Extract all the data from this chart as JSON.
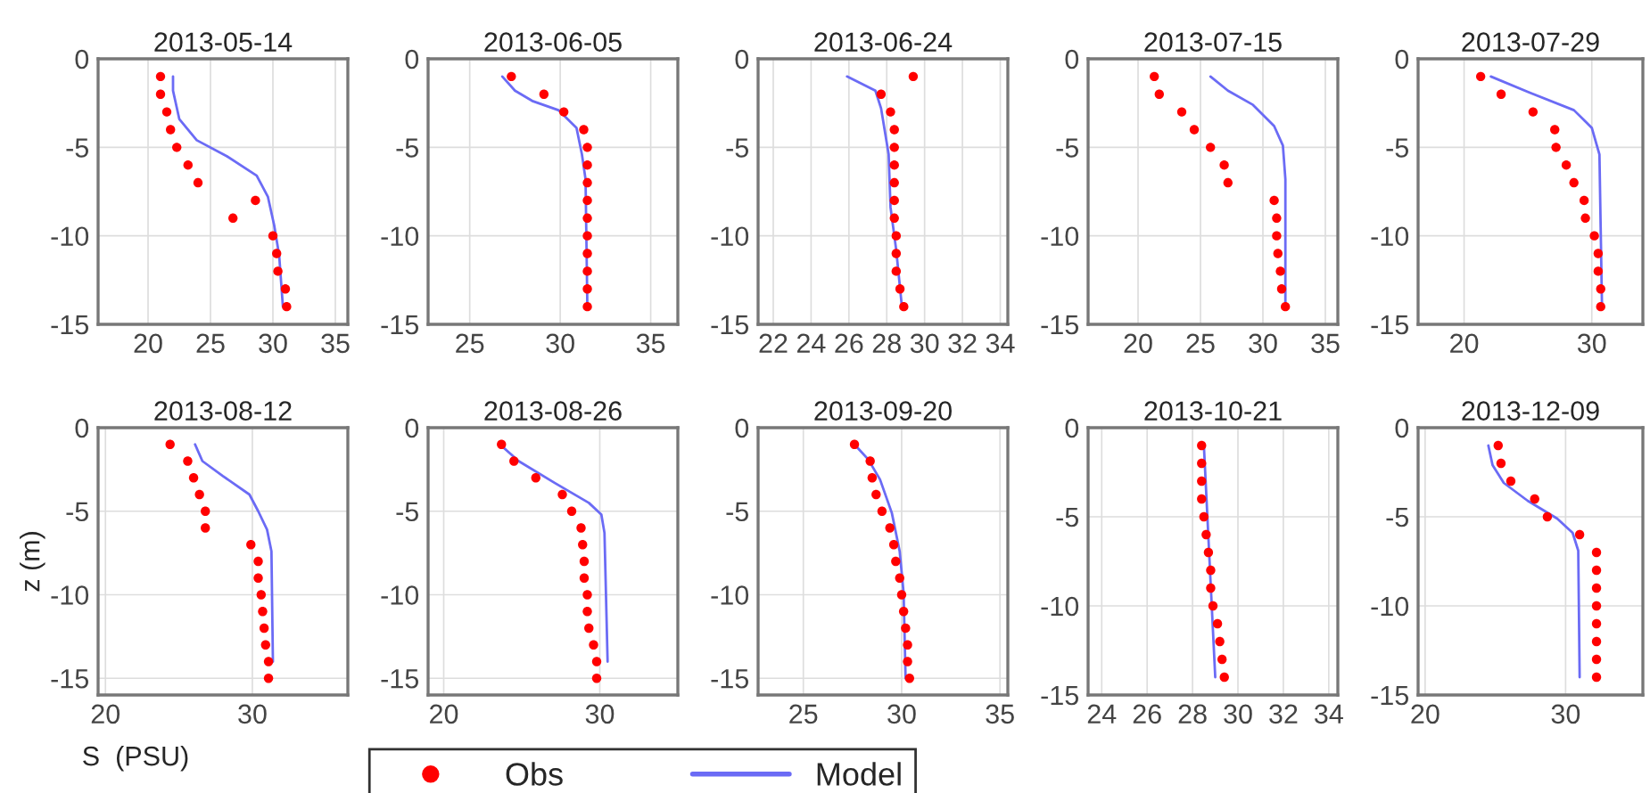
{
  "chart_data": [
    {
      "type": "scatter",
      "title": "2013-05-14",
      "xlim": [
        16,
        36
      ],
      "xticks": [
        20,
        25,
        30,
        35
      ],
      "ylim": [
        -15,
        0
      ],
      "yticks": [
        -15,
        -10,
        -5,
        0
      ],
      "grid": true,
      "legend": "bottom",
      "series": [
        {
          "name": "Obs",
          "marker": "circle",
          "color": "#ff0000",
          "x": [
            21.0,
            21.0,
            21.5,
            21.8,
            22.3,
            23.2,
            24.0,
            28.6,
            26.8,
            30.0,
            30.3,
            30.4,
            31.0,
            31.1
          ],
          "values": [
            -1,
            -2,
            -3,
            -4,
            -5,
            -6,
            -7,
            -8,
            -9,
            -10,
            -11,
            -12,
            -13,
            -14
          ]
        },
        {
          "name": "Model",
          "type": "line",
          "color": "#6b6bf5",
          "line_style": "solid",
          "x": [
            22.0,
            22.0,
            22.5,
            23.9,
            26.3,
            28.7,
            29.6,
            30.1,
            30.5,
            30.8
          ],
          "values": [
            -1,
            -1.8,
            -3.4,
            -4.6,
            -5.5,
            -6.6,
            -7.8,
            -9.4,
            -11.1,
            -14
          ]
        }
      ]
    },
    {
      "type": "scatter",
      "title": "2013-06-05",
      "xlim": [
        22.7,
        36.5
      ],
      "xticks": [
        25,
        30,
        35
      ],
      "ylim": [
        -15,
        0
      ],
      "yticks": [
        -15,
        -10,
        -5,
        0
      ],
      "grid": true,
      "series": [
        {
          "marker": "circle",
          "color": "#ff0000",
          "x": [
            27.3,
            29.1,
            30.2,
            31.3,
            31.5,
            31.5,
            31.5,
            31.5,
            31.5,
            31.5,
            31.5,
            31.5,
            31.5,
            31.5
          ],
          "values": [
            -1,
            -2,
            -3,
            -4,
            -5,
            -6,
            -7,
            -8,
            -9,
            -10,
            -11,
            -12,
            -13,
            -14
          ]
        },
        {
          "type": "line",
          "color": "#6b6bf5",
          "line_style": "solid",
          "x": [
            26.8,
            27.5,
            28.5,
            29.9,
            30.9,
            31.2,
            31.4,
            31.5
          ],
          "values": [
            -1,
            -1.8,
            -2.4,
            -2.9,
            -3.9,
            -5.4,
            -6.8,
            -14
          ]
        }
      ]
    },
    {
      "type": "scatter",
      "title": "2013-06-24",
      "xlim": [
        21.2,
        34.4
      ],
      "xticks": [
        22,
        24,
        26,
        28,
        30,
        32,
        34
      ],
      "ylim": [
        -15,
        0
      ],
      "yticks": [
        -15,
        -10,
        -5,
        0
      ],
      "grid": true,
      "series": [
        {
          "marker": "circle",
          "color": "#ff0000",
          "x": [
            29.4,
            27.7,
            28.2,
            28.4,
            28.4,
            28.4,
            28.4,
            28.4,
            28.4,
            28.5,
            28.5,
            28.5,
            28.7,
            28.9
          ],
          "values": [
            -1,
            -2,
            -3,
            -4,
            -5,
            -6,
            -7,
            -8,
            -9,
            -10,
            -11,
            -12,
            -13,
            -14
          ]
        },
        {
          "type": "line",
          "color": "#6b6bf5",
          "line_style": "solid",
          "x": [
            25.9,
            27.4,
            27.7,
            28.1,
            28.2,
            28.5,
            28.8
          ],
          "values": [
            -1,
            -1.8,
            -2.8,
            -5.4,
            -8.4,
            -10.8,
            -14
          ]
        }
      ]
    },
    {
      "type": "scatter",
      "title": "2013-07-15",
      "xlim": [
        16,
        36
      ],
      "xticks": [
        20,
        25,
        30,
        35
      ],
      "ylim": [
        -15,
        0
      ],
      "yticks": [
        -15,
        -10,
        -5,
        0
      ],
      "grid": true,
      "series": [
        {
          "marker": "circle",
          "color": "#ff0000",
          "x": [
            21.3,
            21.7,
            23.5,
            24.5,
            25.8,
            26.9,
            27.2,
            30.9,
            31.1,
            31.1,
            31.2,
            31.4,
            31.5,
            31.8
          ],
          "values": [
            -1,
            -2,
            -3,
            -4,
            -5,
            -6,
            -7,
            -8,
            -9,
            -10,
            -11,
            -12,
            -13,
            -14
          ]
        },
        {
          "type": "line",
          "color": "#6b6bf5",
          "line_style": "solid",
          "x": [
            25.8,
            27.2,
            29.2,
            30.9,
            31.6,
            31.8,
            31.8
          ],
          "values": [
            -1,
            -1.8,
            -2.6,
            -3.8,
            -4.9,
            -6.8,
            -14
          ]
        }
      ]
    },
    {
      "type": "scatter",
      "title": "2013-07-29",
      "xlim": [
        16.4,
        34
      ],
      "xticks": [
        20,
        30
      ],
      "ylim": [
        -15,
        0
      ],
      "yticks": [
        -15,
        -10,
        -5,
        0
      ],
      "grid": true,
      "series": [
        {
          "marker": "circle",
          "color": "#ff0000",
          "x": [
            21.3,
            22.9,
            25.4,
            27.1,
            27.2,
            28.0,
            28.6,
            29.4,
            29.5,
            30.2,
            30.5,
            30.5,
            30.7,
            30.7
          ],
          "values": [
            -1,
            -2,
            -3,
            -4,
            -5,
            -6,
            -7,
            -8,
            -9,
            -10,
            -11,
            -12,
            -13,
            -14
          ]
        },
        {
          "type": "line",
          "color": "#6b6bf5",
          "line_style": "solid",
          "x": [
            22.1,
            25.1,
            28.6,
            30.0,
            30.6,
            30.8
          ],
          "values": [
            -1,
            -1.9,
            -2.9,
            -3.9,
            -5.4,
            -14
          ]
        }
      ]
    },
    {
      "type": "scatter",
      "title": "2013-08-12",
      "xlabel": "S  (PSU)",
      "ylabel": "z (m)",
      "xlim": [
        19.5,
        36.5
      ],
      "xticks": [
        20,
        30
      ],
      "ylim": [
        -16,
        0
      ],
      "yticks": [
        -15,
        -10,
        -5,
        0
      ],
      "grid": true,
      "series": [
        {
          "marker": "circle",
          "color": "#ff0000",
          "x": [
            24.4,
            25.6,
            26.0,
            26.4,
            26.8,
            26.8,
            29.9,
            30.4,
            30.4,
            30.6,
            30.7,
            30.8,
            30.9,
            31.1,
            31.1
          ],
          "values": [
            -1,
            -2,
            -3,
            -4,
            -5,
            -6,
            -7,
            -8,
            -9,
            -10,
            -11,
            -12,
            -13,
            -14,
            -15
          ]
        },
        {
          "type": "line",
          "color": "#6b6bf5",
          "line_style": "solid",
          "x": [
            26.1,
            26.6,
            28.0,
            29.8,
            30.4,
            31.0,
            31.3,
            31.4
          ],
          "values": [
            -1,
            -2,
            -2.9,
            -4,
            -5,
            -6.1,
            -7.4,
            -14
          ]
        }
      ]
    },
    {
      "type": "scatter",
      "title": "2013-08-26",
      "xlim": [
        19,
        35
      ],
      "xticks": [
        20,
        30
      ],
      "ylim": [
        -16,
        0
      ],
      "yticks": [
        -15,
        -10,
        -5,
        0
      ],
      "grid": true,
      "series": [
        {
          "marker": "circle",
          "color": "#ff0000",
          "x": [
            23.7,
            24.5,
            25.9,
            27.6,
            28.2,
            28.8,
            28.9,
            29.0,
            29.0,
            29.2,
            29.2,
            29.3,
            29.6,
            29.8,
            29.8
          ],
          "values": [
            -1,
            -2,
            -3,
            -4,
            -5,
            -6,
            -7,
            -8,
            -9,
            -10,
            -11,
            -12,
            -13,
            -14,
            -15
          ]
        },
        {
          "type": "line",
          "color": "#6b6bf5",
          "line_style": "solid",
          "x": [
            23.6,
            24.8,
            27.1,
            29.3,
            30.1,
            30.3,
            30.5
          ],
          "values": [
            -1,
            -2,
            -3.3,
            -4.5,
            -5.2,
            -6.3,
            -14
          ]
        }
      ]
    },
    {
      "type": "scatter",
      "title": "2013-09-20",
      "xlim": [
        22.7,
        35.4
      ],
      "xticks": [
        25,
        30,
        35
      ],
      "ylim": [
        -16,
        0
      ],
      "yticks": [
        -15,
        -10,
        -5,
        0
      ],
      "grid": true,
      "series": [
        {
          "marker": "circle",
          "color": "#ff0000",
          "x": [
            27.6,
            28.4,
            28.5,
            28.7,
            29.0,
            29.4,
            29.6,
            29.7,
            29.9,
            30.0,
            30.1,
            30.2,
            30.3,
            30.3,
            30.4
          ],
          "values": [
            -1,
            -2,
            -3,
            -4,
            -5,
            -6,
            -7,
            -8,
            -9,
            -10,
            -11,
            -12,
            -13,
            -14,
            -15
          ]
        },
        {
          "type": "line",
          "color": "#6b6bf5",
          "line_style": "solid",
          "x": [
            27.6,
            28.3,
            28.9,
            29.5,
            29.9,
            30.1,
            30.2
          ],
          "values": [
            -1,
            -1.9,
            -3.1,
            -5.1,
            -7.4,
            -9.9,
            -15
          ]
        }
      ]
    },
    {
      "type": "scatter",
      "title": "2013-10-21",
      "xlim": [
        23.4,
        34.4
      ],
      "xticks": [
        24,
        26,
        28,
        30,
        32,
        34
      ],
      "ylim": [
        -15,
        0
      ],
      "yticks": [
        -15,
        -10,
        -5,
        0
      ],
      "grid": true,
      "series": [
        {
          "marker": "circle",
          "color": "#ff0000",
          "x": [
            28.4,
            28.4,
            28.4,
            28.4,
            28.5,
            28.6,
            28.7,
            28.8,
            28.8,
            28.9,
            29.1,
            29.2,
            29.3,
            29.4
          ],
          "values": [
            -1,
            -2,
            -3,
            -4,
            -5,
            -6,
            -7,
            -8,
            -9,
            -10,
            -11,
            -12,
            -13,
            -14
          ]
        },
        {
          "type": "line",
          "color": "#6b6bf5",
          "line_style": "solid",
          "x": [
            28.5,
            29.0
          ],
          "values": [
            -1,
            -14
          ]
        }
      ]
    },
    {
      "type": "scatter",
      "title": "2013-12-09",
      "xlim": [
        19.5,
        35.5
      ],
      "xticks": [
        20,
        30
      ],
      "ylim": [
        -15,
        0
      ],
      "yticks": [
        -15,
        -10,
        -5,
        0
      ],
      "grid": true,
      "series": [
        {
          "marker": "circle",
          "color": "#ff0000",
          "x": [
            25.2,
            25.4,
            26.1,
            27.8,
            28.7,
            31.0,
            32.2,
            32.2,
            32.2,
            32.2,
            32.2,
            32.2,
            32.2,
            32.2
          ],
          "values": [
            -1,
            -2,
            -3,
            -4,
            -5,
            -6,
            -7,
            -8,
            -9,
            -10,
            -11,
            -12,
            -13,
            -14
          ]
        },
        {
          "type": "line",
          "color": "#6b6bf5",
          "line_style": "solid",
          "x": [
            24.5,
            24.8,
            25.6,
            27.3,
            29.4,
            30.5,
            30.9,
            31.0
          ],
          "values": [
            -1,
            -2.1,
            -3.1,
            -4.1,
            -5.1,
            -5.9,
            -6.9,
            -14
          ]
        }
      ]
    }
  ]
}
